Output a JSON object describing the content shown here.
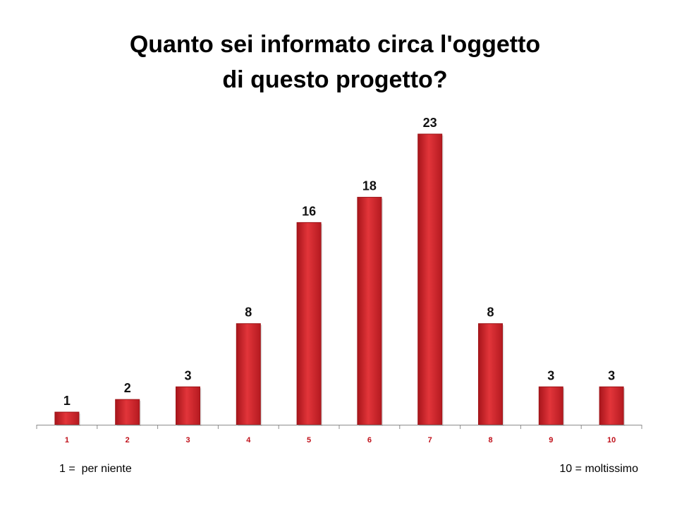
{
  "chart_data": {
    "type": "bar",
    "title_lines": [
      "Quanto sei informato circa l'oggetto",
      "di questo progetto?"
    ],
    "categories": [
      "1",
      "2",
      "3",
      "4",
      "5",
      "6",
      "7",
      "8",
      "9",
      "10"
    ],
    "values": [
      1,
      2,
      3,
      8,
      16,
      18,
      23,
      8,
      3,
      3
    ],
    "ylim": [
      0,
      23
    ],
    "grid": false,
    "legend": "none",
    "bar_color": "#d9262c",
    "bar_color_dark": "#9e1418",
    "tick_label_color": "#c0101a"
  },
  "notes": {
    "left": "1 =  per niente",
    "right": "10 = moltissimo"
  }
}
